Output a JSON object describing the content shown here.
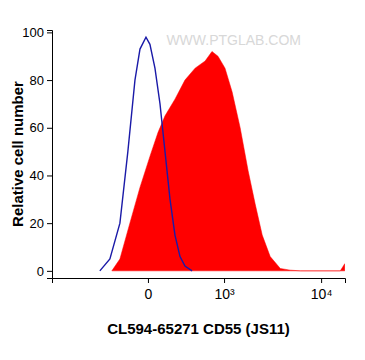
{
  "chart_data": {
    "type": "histogram",
    "x_label": "CL594-65271 CD55 (JS11)",
    "y_label": "Relative cell number",
    "annotation": "WWW.PTGLAB.COM",
    "xlim": [
      -1620,
      17500
    ],
    "xticks": [
      0,
      {
        "value": 1000,
        "label": "10³"
      },
      {
        "value": 10000,
        "label": "10⁴"
      }
    ],
    "ylim": [
      -3,
      101
    ],
    "yticks": [
      0,
      20,
      40,
      60,
      80,
      100
    ],
    "grid": false,
    "series": [
      {
        "type": "area",
        "color": "#ff0000",
        "x": [
          -329,
          -244,
          -151,
          -65,
          16,
          82,
          142,
          234,
          339,
          465,
          615,
          737,
          859,
          1024,
          1220,
          1481,
          1792,
          2120,
          2505,
          3024,
          3834,
          4844,
          6124,
          15674,
          17400
        ],
        "values": [
          0,
          5,
          20,
          35,
          48,
          58,
          65,
          72,
          80,
          85,
          88,
          92,
          90,
          85,
          75,
          60,
          42,
          28,
          15,
          6,
          1,
          0.3,
          0,
          0,
          3
        ]
      },
      {
        "type": "line",
        "color": "#1a1aa8",
        "x": [
          -478,
          -351,
          -244,
          -169,
          -107,
          -65,
          -16,
          16,
          57,
          99,
          142,
          187,
          234,
          285,
          339,
          425
        ],
        "values": [
          0,
          5,
          20,
          50,
          80,
          93,
          98,
          95,
          85,
          70,
          50,
          30,
          15,
          6,
          2,
          0
        ]
      }
    ]
  }
}
